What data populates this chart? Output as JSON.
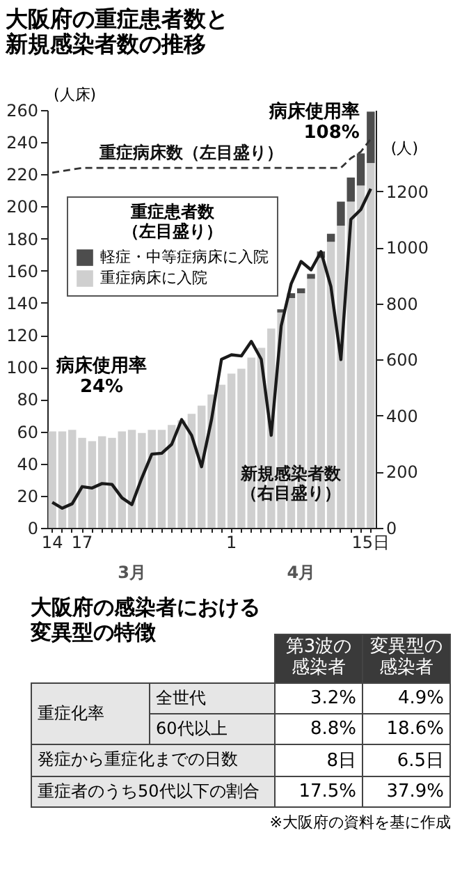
{
  "chart_data": [
    {
      "type": "bar",
      "title": "大阪府の重症患者数と新規感染者数の推移",
      "categories": [
        "14",
        null,
        null,
        "17",
        null,
        null,
        null,
        null,
        null,
        null,
        null,
        null,
        null,
        null,
        null,
        null,
        null,
        null,
        "1",
        null,
        null,
        null,
        null,
        null,
        null,
        null,
        null,
        null,
        null,
        null,
        null,
        null,
        "15日"
      ],
      "series": [
        {
          "name": "重症病床に入院",
          "type": "bar",
          "color": "#cfcfcf",
          "values": [
            60,
            60,
            61,
            56,
            54,
            57,
            56,
            60,
            61,
            59,
            61,
            61,
            64,
            67,
            71,
            76,
            83,
            89,
            96,
            99,
            106,
            112,
            124,
            134,
            143,
            146,
            155,
            168,
            178,
            188,
            203,
            213,
            227
          ]
        },
        {
          "name": "軽症・中等症病床に入院",
          "type": "bar",
          "color": "#4d4d4d",
          "values": [
            0,
            0,
            0,
            0,
            0,
            0,
            0,
            0,
            0,
            0,
            0,
            0,
            0,
            0,
            0,
            0,
            0,
            0,
            0,
            0,
            0,
            0,
            0,
            2,
            3,
            3,
            3,
            4,
            5,
            15,
            15,
            20,
            32
          ]
        },
        {
          "name": "重症病床数（左目盛り）",
          "type": "line",
          "color": "#333333",
          "line_style": "dashed",
          "values": [
            221,
            222,
            223,
            224,
            224,
            224,
            224,
            224,
            224,
            224,
            224,
            224,
            224,
            224,
            224,
            224,
            224,
            224,
            224,
            224,
            224,
            224,
            224,
            224,
            224,
            224,
            224,
            224,
            224,
            224,
            230,
            234,
            242
          ]
        },
        {
          "name": "新規感染者数（右目盛り）",
          "type": "line",
          "axis": "y2",
          "color": "#1a1a1a",
          "values": [
            91,
            70,
            86,
            147,
            142,
            158,
            155,
            107,
            83,
            178,
            263,
            266,
            298,
            386,
            330,
            218,
            386,
            601,
            617,
            613,
            665,
            601,
            330,
            720,
            870,
            950,
            920,
            985,
            860,
            600,
            1100,
            1135,
            1209
          ]
        }
      ],
      "stacked": true,
      "ylim": [
        0,
        260
      ],
      "yticks": [
        0,
        20,
        40,
        60,
        80,
        100,
        120,
        140,
        160,
        180,
        200,
        220,
        240,
        260
      ],
      "y2lim": [
        0,
        1490
      ],
      "y2ticks": [
        0,
        200,
        400,
        600,
        800,
        1000,
        1200
      ],
      "ylabel": "(人床)",
      "y2label": "(人)",
      "legend_title": "重症患者数（左目盛り）",
      "legend": "top left",
      "annotations": [
        "3月",
        "4月",
        {
          "text": "病床使用率\n24%",
          "x": "17",
          "y": 56
        },
        {
          "text": "病床使用率\n108%",
          "x": "15日",
          "y": 259
        }
      ]
    },
    {
      "type": "other",
      "title": "大阪府の感染者における変異型の特徴",
      "annotations": [
        "第3波の感染者",
        "変異型の感染者",
        "重症化率",
        "全世代",
        "3.2%",
        "4.9%",
        "60代以上",
        "8.8%",
        "18.6%",
        "発症から重症化までの日数",
        "8日",
        "6.5日",
        "重症者のうち50代以下の割合",
        "17.5%",
        "37.9%",
        "※大阪府の資料を基に作成"
      ]
    }
  ]
}
